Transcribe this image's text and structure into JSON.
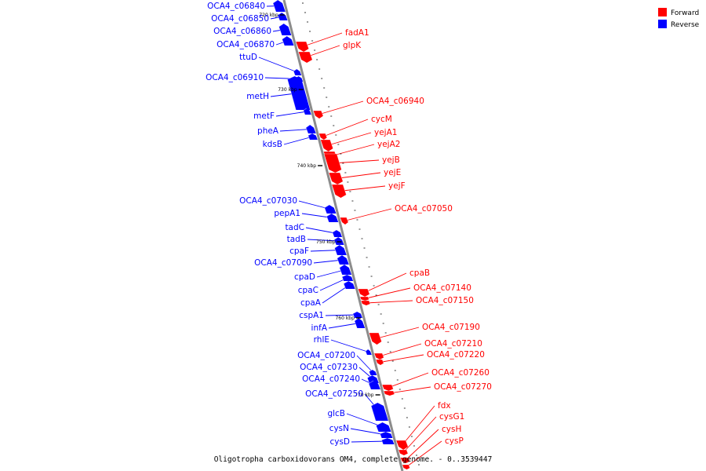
{
  "caption": "Oligotropha carboxidovorans OM4, complete genome. - 0..3539447",
  "legend": [
    {
      "label": "Forward",
      "color": "#ff0000"
    },
    {
      "label": "Reverse",
      "color": "#0000ff"
    }
  ],
  "colors": {
    "forward": "#ff0000",
    "reverse": "#0000ff",
    "backbone": "#8c8c8c"
  },
  "ticks": [
    "720 kbp",
    "730 kbp",
    "740 kbp",
    "750 kbp",
    "760 kbp",
    "770 kbp"
  ],
  "reverse_genes": [
    "OCA4_c06840",
    "OCA4_c06850",
    "OCA4_c06860",
    "OCA4_c06870",
    "ttuD",
    "OCA4_c06910",
    "metH",
    "metF",
    "pheA",
    "kdsB",
    "OCA4_c07030",
    "pepA1",
    "tadC",
    "tadB",
    "cpaF",
    "OCA4_c07090",
    "cpaD",
    "cpaC",
    "cpaA",
    "cspA1",
    "infA",
    "rhlE",
    "OCA4_c07200",
    "OCA4_c07230",
    "OCA4_c07240",
    "OCA4_c07250",
    "glcB",
    "cysN",
    "cysD"
  ],
  "forward_genes": [
    "fadA1",
    "glpK",
    "OCA4_c06940",
    "cycM",
    "yejA1",
    "yejA2",
    "yejB",
    "yejE",
    "yejF",
    "OCA4_c07050",
    "cpaB",
    "OCA4_c07140",
    "OCA4_c07150",
    "OCA4_c07190",
    "OCA4_c07210",
    "OCA4_c07220",
    "OCA4_c07260",
    "OCA4_c07270",
    "fdx",
    "cysG1",
    "cysH",
    "cysP"
  ]
}
